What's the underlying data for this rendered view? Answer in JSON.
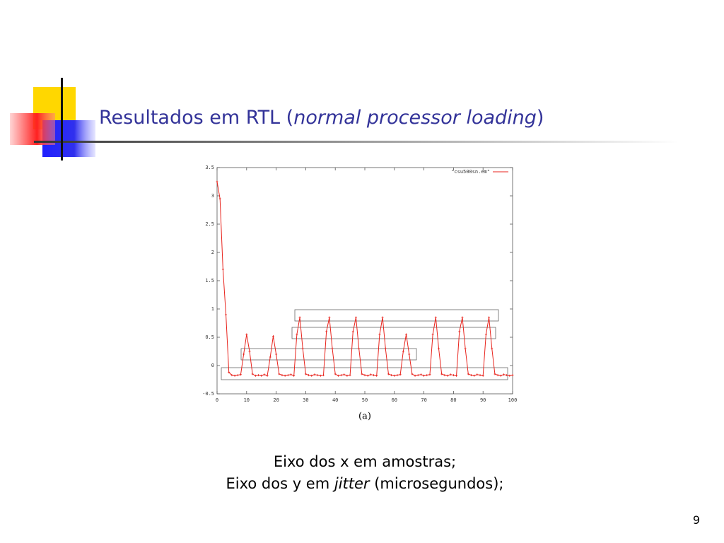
{
  "slide": {
    "title_start": "Resultados em RTL (",
    "title_italic": "normal processor loading",
    "title_end": ")",
    "caption_line1": "Eixo dos x em amostras;",
    "caption_line2_start": "Eixo dos y em ",
    "caption_line2_italic": "jitter",
    "caption_line2_end": " (microsegundos);",
    "page_number": "9"
  },
  "chart_data": {
    "type": "line",
    "x_label": "(a)",
    "legend": "upper right",
    "x": [
      0,
      1,
      2,
      3,
      4,
      5,
      6,
      7,
      8,
      9,
      10,
      11,
      12,
      13,
      14,
      15,
      16,
      17,
      18,
      19,
      20,
      21,
      22,
      23,
      24,
      25,
      26,
      27,
      28,
      29,
      30,
      31,
      32,
      33,
      34,
      35,
      36,
      37,
      38,
      39,
      40,
      41,
      42,
      43,
      44,
      45,
      46,
      47,
      48,
      49,
      50,
      51,
      52,
      53,
      54,
      55,
      56,
      57,
      58,
      59,
      60,
      61,
      62,
      63,
      64,
      65,
      66,
      67,
      68,
      69,
      70,
      71,
      72,
      73,
      74,
      75,
      76,
      77,
      78,
      79,
      80,
      81,
      82,
      83,
      84,
      85,
      86,
      87,
      88,
      89,
      90,
      91,
      92,
      93,
      94,
      95,
      96,
      97,
      98,
      99,
      100
    ],
    "series": [
      {
        "name": "\"csu500sn.em\"",
        "color": "#e8231c",
        "values": [
          3.25,
          2.95,
          1.7,
          0.9,
          -0.12,
          -0.17,
          -0.18,
          -0.17,
          -0.16,
          0.2,
          0.55,
          0.25,
          -0.15,
          -0.18,
          -0.17,
          -0.18,
          -0.16,
          -0.18,
          0.15,
          0.52,
          0.2,
          -0.15,
          -0.17,
          -0.18,
          -0.17,
          -0.16,
          -0.18,
          0.55,
          0.85,
          0.3,
          -0.15,
          -0.17,
          -0.18,
          -0.16,
          -0.17,
          -0.18,
          -0.17,
          0.6,
          0.85,
          0.3,
          -0.15,
          -0.18,
          -0.17,
          -0.16,
          -0.18,
          -0.17,
          0.6,
          0.85,
          0.3,
          -0.15,
          -0.17,
          -0.18,
          -0.16,
          -0.17,
          -0.18,
          0.55,
          0.85,
          0.3,
          -0.15,
          -0.17,
          -0.18,
          -0.17,
          -0.16,
          0.25,
          0.55,
          0.2,
          -0.15,
          -0.18,
          -0.17,
          -0.16,
          -0.18,
          -0.17,
          -0.16,
          0.55,
          0.85,
          0.3,
          -0.15,
          -0.17,
          -0.18,
          -0.16,
          -0.17,
          -0.18,
          0.6,
          0.85,
          0.3,
          -0.15,
          -0.17,
          -0.18,
          -0.16,
          -0.17,
          -0.18,
          0.55,
          0.85,
          0.3,
          -0.15,
          -0.17,
          -0.18,
          -0.16,
          -0.17,
          -0.18,
          -0.17
        ]
      }
    ],
    "xlim": [
      0,
      100
    ],
    "xticks": [
      0,
      10,
      20,
      30,
      40,
      50,
      60,
      70,
      80,
      90,
      100
    ],
    "ylim": [
      -0.5,
      3.5
    ],
    "yticks": [
      -0.5,
      0,
      0.5,
      1,
      1.5,
      2,
      2.5,
      3,
      3.5
    ]
  }
}
